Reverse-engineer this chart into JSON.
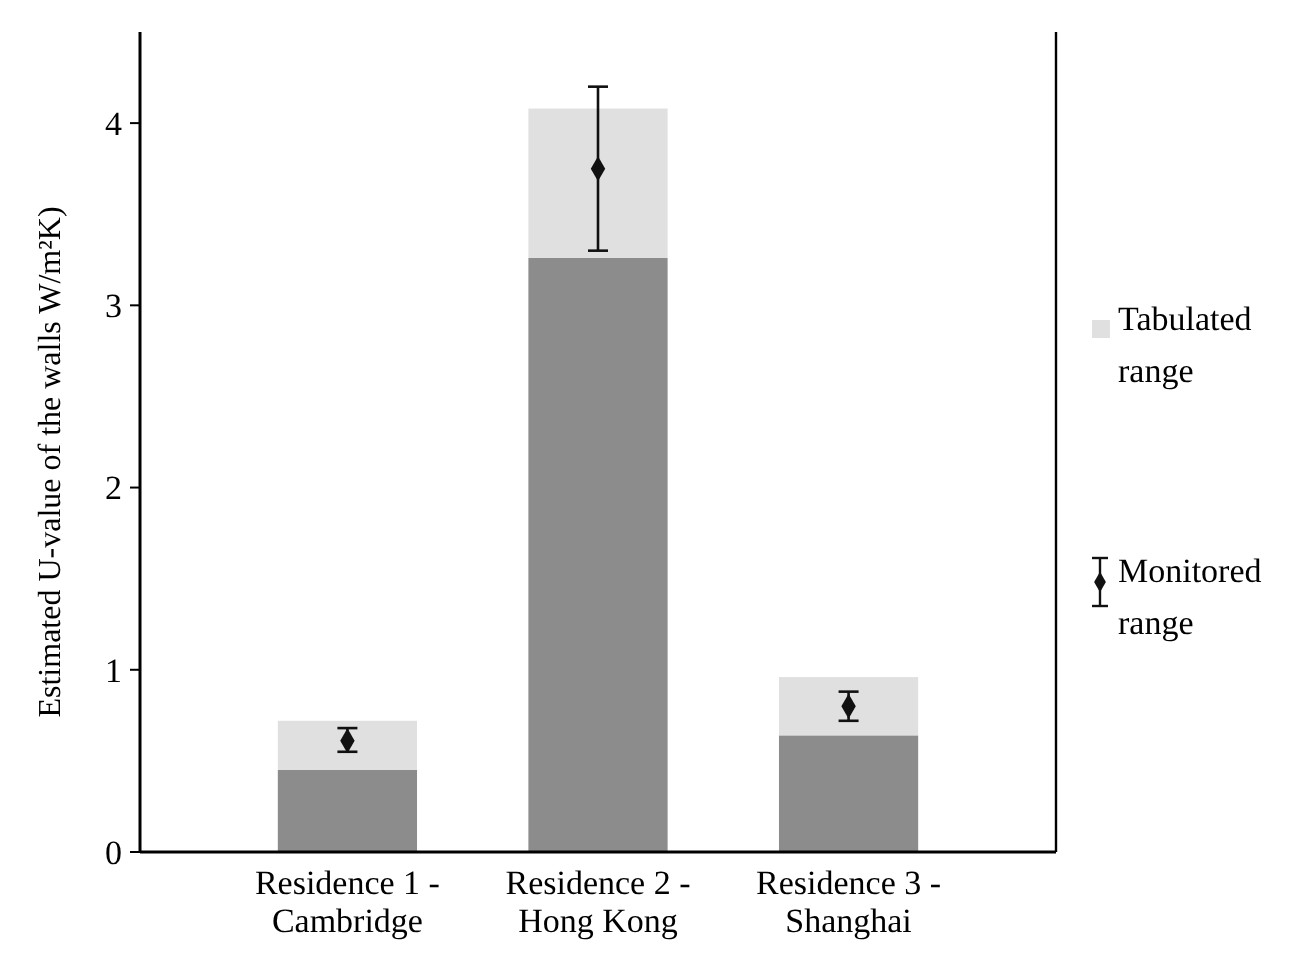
{
  "chart_data": {
    "type": "bar",
    "ylabel": "Estimated U-value of the walls W/m²K)",
    "categories": [
      "Residence 1 - Cambridge",
      "Residence 2 - Hong Kong",
      "Residence 3 - Shanghai"
    ],
    "stacked": true,
    "series": [
      {
        "color": "#8c8c8c",
        "values": [
          0.45,
          3.26,
          0.64
        ]
      },
      {
        "name": "Tabulated range",
        "color": "#e0e0e0",
        "values": [
          0.27,
          0.82,
          0.32
        ]
      },
      {
        "name": "Monitored range",
        "type": "scatter",
        "color": "#111111",
        "marker": "diamond",
        "x": [
          "Residence 1 - Cambridge",
          "Residence 2 - Hong Kong",
          "Residence 3 - Shanghai"
        ],
        "values": [
          0.61,
          3.75,
          0.8
        ],
        "errors": [
          [
            0.55,
            0.68
          ],
          [
            3.3,
            4.2
          ],
          [
            0.72,
            0.88
          ]
        ]
      }
    ],
    "ylim": [
      0,
      4.5
    ],
    "yticks": [
      0,
      1,
      2,
      3,
      4
    ],
    "grid": false,
    "legend": "right"
  }
}
